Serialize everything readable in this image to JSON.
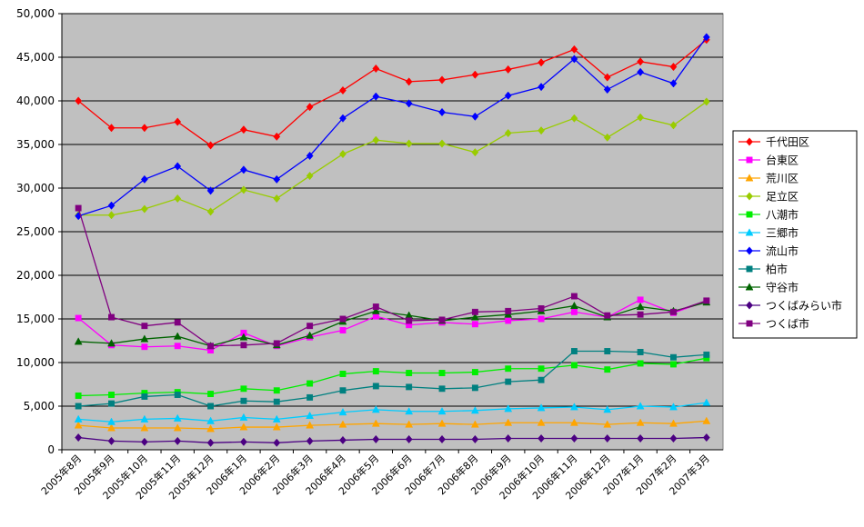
{
  "chart_data": {
    "type": "line",
    "title": "",
    "xlabel": "",
    "ylabel": "",
    "ylim": [
      0,
      50000
    ],
    "yticks": [
      0,
      5000,
      10000,
      15000,
      20000,
      25000,
      30000,
      35000,
      40000,
      45000,
      50000
    ],
    "ytick_labels": [
      "0",
      "5,000",
      "10,000",
      "15,000",
      "20,000",
      "25,000",
      "30,000",
      "35,000",
      "40,000",
      "45,000",
      "50,000"
    ],
    "grid": true,
    "legend_position": "right",
    "plot_background": "#c0c0c0",
    "categories": [
      "2005年8月",
      "2005年9月",
      "2005年10月",
      "2005年11月",
      "2005年12月",
      "2006年1月",
      "2006年2月",
      "2006年3月",
      "2006年4月",
      "2006年5月",
      "2006年6月",
      "2006年7月",
      "2006年8月",
      "2006年9月",
      "2006年10月",
      "2006年11月",
      "2006年12月",
      "2007年1月",
      "2007年2月",
      "2007年3月"
    ],
    "series": [
      {
        "name": "千代田区",
        "color": "#ff0000",
        "marker": "diamond",
        "values": [
          40000,
          36900,
          36900,
          37600,
          34900,
          36700,
          35900,
          39300,
          41200,
          43700,
          42200,
          42400,
          43000,
          43600,
          44400,
          45900,
          42700,
          44500,
          43900,
          47000
        ]
      },
      {
        "name": "台東区",
        "color": "#ff00ff",
        "marker": "square",
        "values": [
          15100,
          12000,
          11800,
          11900,
          11400,
          13400,
          11900,
          12900,
          13700,
          15300,
          14300,
          14600,
          14400,
          14800,
          15000,
          15800,
          15200,
          17200,
          15700,
          17000
        ]
      },
      {
        "name": "荒川区",
        "color": "#ffa500",
        "marker": "triangle",
        "values": [
          2800,
          2500,
          2500,
          2500,
          2400,
          2600,
          2600,
          2800,
          2900,
          3000,
          2900,
          3000,
          2900,
          3100,
          3100,
          3100,
          2900,
          3100,
          3000,
          3300
        ]
      },
      {
        "name": "足立区",
        "color": "#99cc00",
        "marker": "diamond",
        "values": [
          26900,
          26900,
          27600,
          28800,
          27300,
          29800,
          28800,
          31400,
          33900,
          35500,
          35100,
          35100,
          34100,
          36300,
          36600,
          38000,
          35800,
          38100,
          37200,
          39900
        ]
      },
      {
        "name": "八潮市",
        "color": "#00ee00",
        "marker": "square",
        "values": [
          6200,
          6300,
          6500,
          6600,
          6400,
          7000,
          6800,
          7600,
          8700,
          9000,
          8800,
          8800,
          8900,
          9300,
          9300,
          9700,
          9200,
          9900,
          9800,
          10500
        ]
      },
      {
        "name": "三郷市",
        "color": "#00ccff",
        "marker": "triangle",
        "values": [
          3500,
          3200,
          3500,
          3600,
          3300,
          3700,
          3500,
          3900,
          4300,
          4600,
          4400,
          4400,
          4500,
          4700,
          4800,
          4900,
          4600,
          5000,
          4900,
          5400
        ]
      },
      {
        "name": "流山市",
        "color": "#0000ff",
        "marker": "diamond",
        "values": [
          26800,
          28000,
          31000,
          32500,
          29700,
          32100,
          31000,
          33700,
          38000,
          40500,
          39700,
          38700,
          38200,
          40600,
          41600,
          44800,
          41300,
          43300,
          42000,
          47300
        ]
      },
      {
        "name": "柏市",
        "color": "#008080",
        "marker": "square",
        "values": [
          5000,
          5300,
          6100,
          6300,
          5000,
          5600,
          5500,
          6000,
          6800,
          7300,
          7200,
          7000,
          7100,
          7800,
          8000,
          11300,
          11300,
          11200,
          10600,
          10900
        ]
      },
      {
        "name": "守谷市",
        "color": "#006400",
        "marker": "triangle",
        "values": [
          12400,
          12200,
          12700,
          13000,
          11900,
          12900,
          12000,
          13100,
          14700,
          15900,
          15400,
          14800,
          15200,
          15500,
          15900,
          16500,
          15200,
          16400,
          15900,
          16900
        ]
      },
      {
        "name": "つくばみらい市",
        "color": "#4b0082",
        "marker": "diamond",
        "values": [
          1400,
          1000,
          900,
          1000,
          800,
          900,
          800,
          1000,
          1100,
          1200,
          1200,
          1200,
          1200,
          1300,
          1300,
          1300,
          1300,
          1300,
          1300,
          1400
        ]
      },
      {
        "name": "つくば市",
        "color": "#800080",
        "marker": "square",
        "values": [
          27700,
          15200,
          14200,
          14600,
          11900,
          12000,
          12200,
          14200,
          15000,
          16400,
          14800,
          14900,
          15800,
          15900,
          16200,
          17600,
          15400,
          15500,
          15800,
          17100
        ]
      }
    ]
  }
}
